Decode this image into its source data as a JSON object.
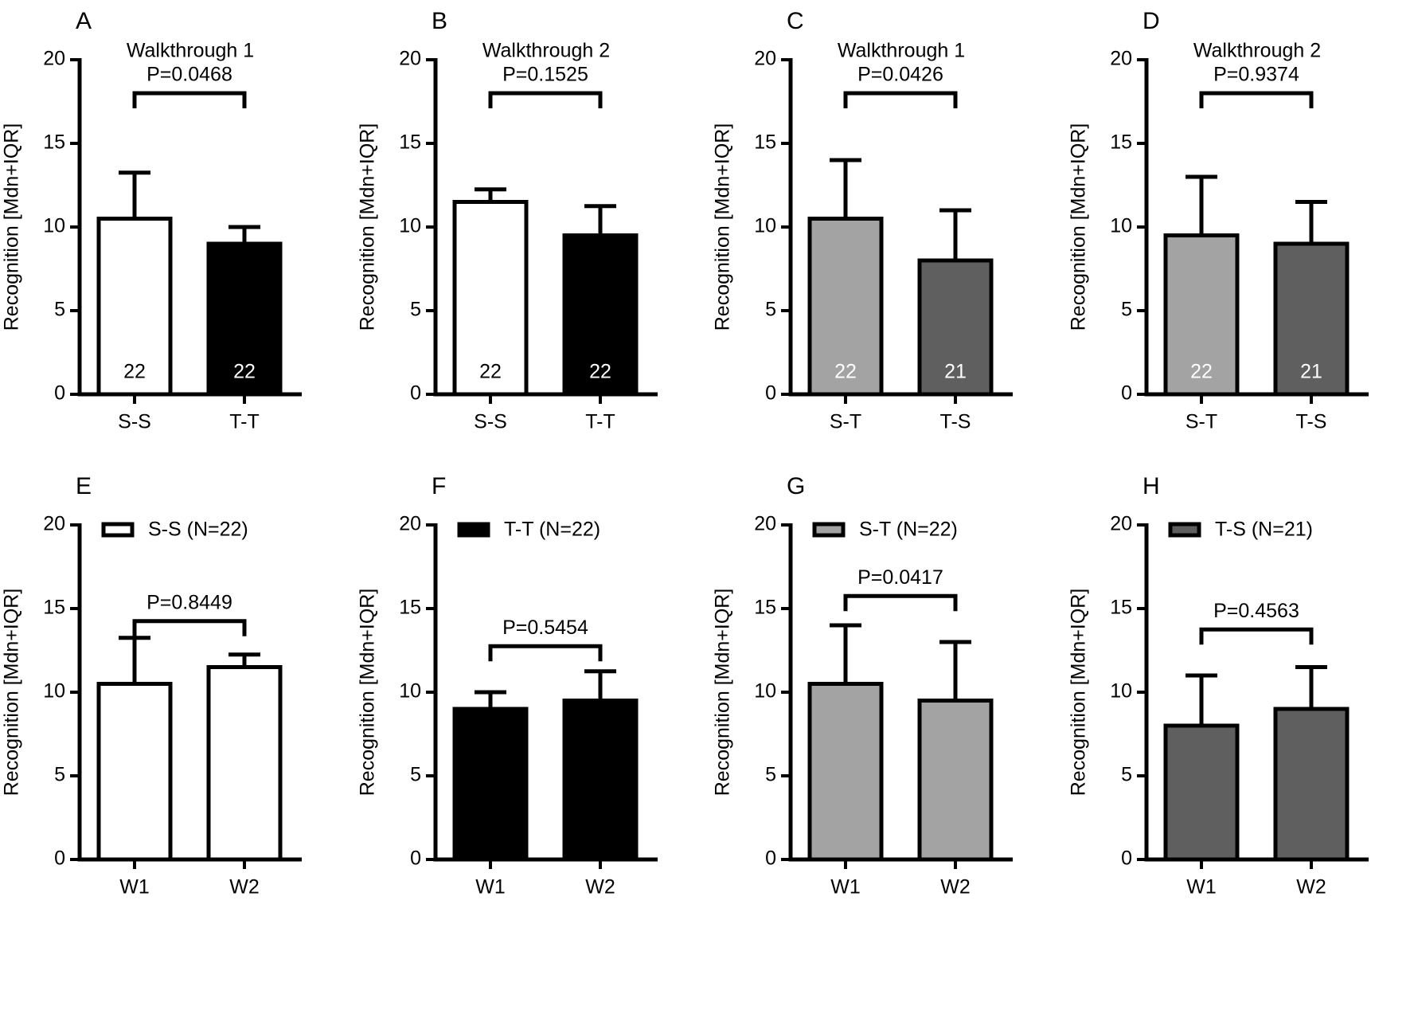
{
  "figure": {
    "ylabel": "Recognition [Mdn+IQR]",
    "yticks": [
      0,
      5,
      10,
      15,
      20
    ]
  },
  "colors": {
    "S-S": "#ffffff",
    "T-T": "#000000",
    "S-T": "#a3a3a3",
    "T-S": "#5f5f5f",
    "axis": "#000000"
  },
  "chart_data": [
    {
      "type": "bar",
      "panel": "A",
      "title": "Walkthrough 1",
      "categories": [
        "S-S",
        "T-T"
      ],
      "values": [
        10.5,
        9.0
      ],
      "error_upper": [
        13.25,
        10.0
      ],
      "n_labels": [
        "22",
        "22"
      ],
      "fills": [
        "S-S",
        "T-T"
      ],
      "p_value": "P=0.0468",
      "bracket_y": 18,
      "ylim": [
        0,
        20
      ],
      "ylabel": "Recognition [Mdn+IQR]"
    },
    {
      "type": "bar",
      "panel": "B",
      "title": "Walkthrough 2",
      "categories": [
        "S-S",
        "T-T"
      ],
      "values": [
        11.5,
        9.5
      ],
      "error_upper": [
        12.25,
        11.25
      ],
      "n_labels": [
        "22",
        "22"
      ],
      "fills": [
        "S-S",
        "T-T"
      ],
      "p_value": "P=0.1525",
      "bracket_y": 18,
      "ylim": [
        0,
        20
      ],
      "ylabel": "Recognition [Mdn+IQR]"
    },
    {
      "type": "bar",
      "panel": "C",
      "title": "Walkthrough 1",
      "categories": [
        "S-T",
        "T-S"
      ],
      "values": [
        10.5,
        8.0
      ],
      "error_upper": [
        14.0,
        11.0
      ],
      "n_labels": [
        "22",
        "21"
      ],
      "fills": [
        "S-T",
        "T-S"
      ],
      "p_value": "P=0.0426",
      "bracket_y": 18,
      "ylim": [
        0,
        20
      ],
      "ylabel": "Recognition [Mdn+IQR]"
    },
    {
      "type": "bar",
      "panel": "D",
      "title": "Walkthrough 2",
      "categories": [
        "S-T",
        "T-S"
      ],
      "values": [
        9.5,
        9.0
      ],
      "error_upper": [
        13.0,
        11.5
      ],
      "n_labels": [
        "22",
        "21"
      ],
      "fills": [
        "S-T",
        "T-S"
      ],
      "p_value": "P=0.9374",
      "bracket_y": 18,
      "ylim": [
        0,
        20
      ],
      "ylabel": "Recognition [Mdn+IQR]"
    },
    {
      "type": "bar",
      "panel": "E",
      "legend": "S-S (N=22)",
      "legend_fill": "S-S",
      "categories": [
        "W1",
        "W2"
      ],
      "values": [
        10.5,
        11.5
      ],
      "error_upper": [
        13.25,
        12.25
      ],
      "fills": [
        "S-S",
        "S-S"
      ],
      "p_value": "P=0.8449",
      "bracket_y": 14.25,
      "ylim": [
        0,
        20
      ],
      "ylabel": "Recognition [Mdn+IQR]"
    },
    {
      "type": "bar",
      "panel": "F",
      "legend": "T-T (N=22)",
      "legend_fill": "T-T",
      "categories": [
        "W1",
        "W2"
      ],
      "values": [
        9.0,
        9.5
      ],
      "error_upper": [
        10.0,
        11.25
      ],
      "fills": [
        "T-T",
        "T-T"
      ],
      "p_value": "P=0.5454",
      "bracket_y": 12.75,
      "ylim": [
        0,
        20
      ],
      "ylabel": "Recognition [Mdn+IQR]"
    },
    {
      "type": "bar",
      "panel": "G",
      "legend": "S-T (N=22)",
      "legend_fill": "S-T",
      "categories": [
        "W1",
        "W2"
      ],
      "values": [
        10.5,
        9.5
      ],
      "error_upper": [
        14.0,
        13.0
      ],
      "fills": [
        "S-T",
        "S-T"
      ],
      "p_value": "P=0.0417",
      "bracket_y": 15.75,
      "ylim": [
        0,
        20
      ],
      "ylabel": "Recognition [Mdn+IQR]"
    },
    {
      "type": "bar",
      "panel": "H",
      "legend": "T-S (N=21)",
      "legend_fill": "T-S",
      "categories": [
        "W1",
        "W2"
      ],
      "values": [
        8.0,
        9.0
      ],
      "error_upper": [
        11.0,
        11.5
      ],
      "fills": [
        "T-S",
        "T-S"
      ],
      "p_value": "P=0.4563",
      "bracket_y": 13.75,
      "ylim": [
        0,
        20
      ],
      "ylabel": "Recognition [Mdn+IQR]"
    }
  ]
}
